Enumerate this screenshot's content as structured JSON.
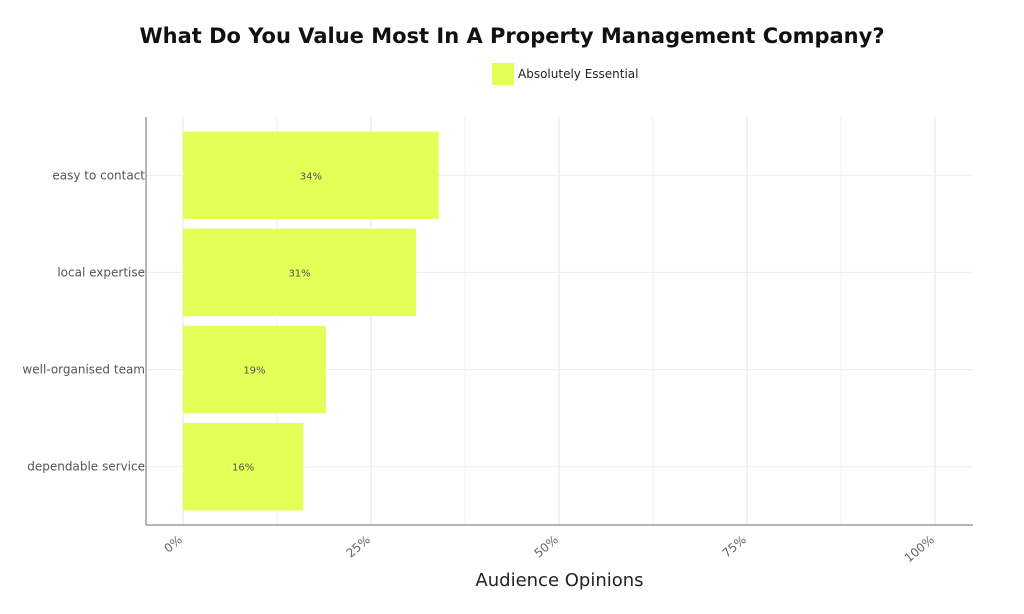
{
  "chart_data": {
    "type": "bar",
    "orientation": "horizontal",
    "title": "What Do You Value Most In A Property Management Company?",
    "xlabel": "Audience Opinions",
    "ylabel": "",
    "categories": [
      "easy to contact",
      "local expertise",
      "well-organised team",
      "dependable service"
    ],
    "series": [
      {
        "name": "Absolutely Essential",
        "values": [
          34,
          31,
          19,
          16
        ],
        "labels": [
          "34%",
          "31%",
          "19%",
          "16%"
        ],
        "color": "#e4ff55"
      }
    ],
    "xticks": [
      "0%",
      "25%",
      "50%",
      "75%",
      "100%"
    ],
    "xlim": [
      0,
      100
    ],
    "grid": true,
    "legend": "top-center"
  }
}
